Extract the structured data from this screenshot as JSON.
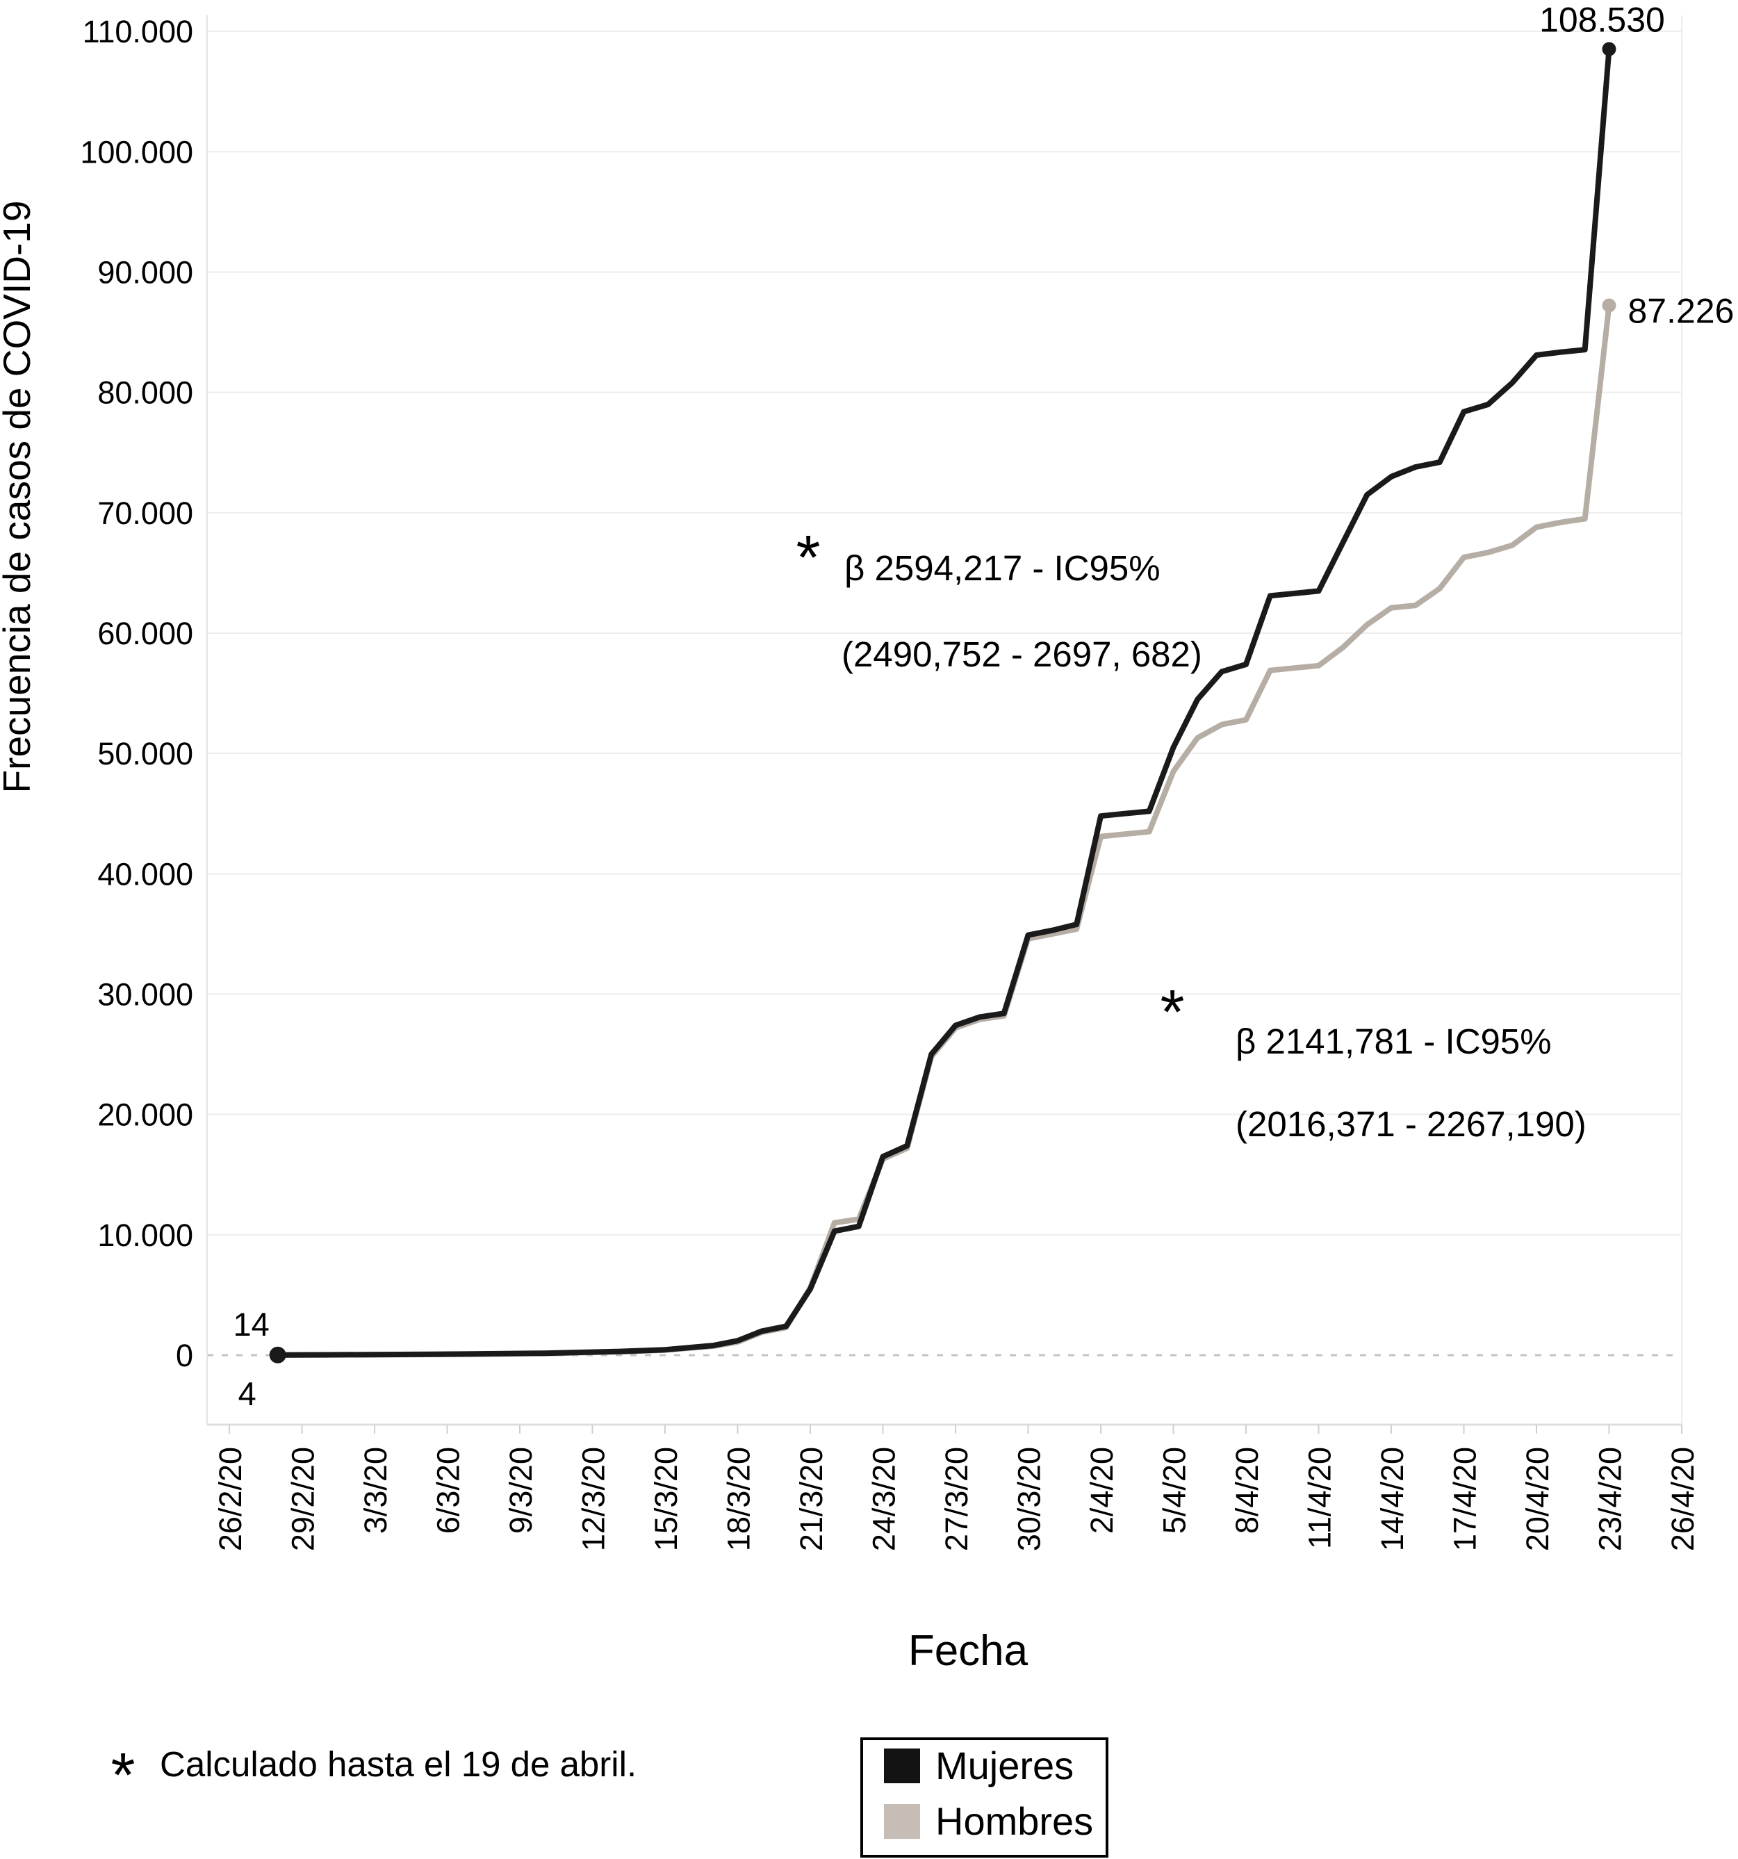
{
  "chart_data": {
    "type": "line",
    "title": "",
    "xlabel": "Fecha",
    "ylabel": "Frecuencia de casos de COVID-19",
    "x_tick_labels": [
      "26/2/20",
      "29/2/20",
      "3/3/20",
      "6/3/20",
      "9/3/20",
      "12/3/20",
      "15/3/20",
      "18/3/20",
      "21/3/20",
      "24/3/20",
      "27/3/20",
      "30/3/20",
      "2/4/20",
      "5/4/20",
      "8/4/20",
      "11/4/20",
      "14/4/20",
      "17/4/20",
      "20/4/20",
      "23/4/20",
      "26/4/20"
    ],
    "y_tick_labels": [
      "0",
      "10.000",
      "20.000",
      "30.000",
      "40.000",
      "50.000",
      "60.000",
      "70.000",
      "80.000",
      "90.000",
      "100.000",
      "110.000"
    ],
    "y_tick_values": [
      0,
      10000,
      20000,
      30000,
      40000,
      50000,
      60000,
      70000,
      80000,
      90000,
      100000,
      110000
    ],
    "ylim": [
      0,
      110000
    ],
    "grid": "horizontal",
    "zero_line_style": "dotted",
    "legend_position": "bottom",
    "series": [
      {
        "name": "Mujeres",
        "color": "#1a1a1a",
        "start_label": "14",
        "end_label": "108.530",
        "points": [
          [
            "28/2/20",
            14
          ],
          [
            "1/3/20",
            30
          ],
          [
            "4/3/20",
            60
          ],
          [
            "7/3/20",
            100
          ],
          [
            "10/3/20",
            160
          ],
          [
            "13/3/20",
            300
          ],
          [
            "15/3/20",
            450
          ],
          [
            "17/3/20",
            800
          ],
          [
            "18/3/20",
            1200
          ],
          [
            "19/3/20",
            2000
          ],
          [
            "20/3/20",
            2400
          ],
          [
            "21/3/20",
            5500
          ],
          [
            "22/3/20",
            10300
          ],
          [
            "23/3/20",
            10700
          ],
          [
            "24/3/20",
            16500
          ],
          [
            "25/3/20",
            17400
          ],
          [
            "26/3/20",
            25000
          ],
          [
            "27/3/20",
            27400
          ],
          [
            "28/3/20",
            28100
          ],
          [
            "29/3/20",
            28400
          ],
          [
            "30/3/20",
            34900
          ],
          [
            "31/3/20",
            35300
          ],
          [
            "1/4/20",
            35800
          ],
          [
            "2/4/20",
            44800
          ],
          [
            "3/4/20",
            45000
          ],
          [
            "4/4/20",
            45200
          ],
          [
            "5/4/20",
            50500
          ],
          [
            "6/4/20",
            54500
          ],
          [
            "7/4/20",
            56800
          ],
          [
            "8/4/20",
            57400
          ],
          [
            "9/4/20",
            63100
          ],
          [
            "10/4/20",
            63300
          ],
          [
            "11/4/20",
            63500
          ],
          [
            "12/4/20",
            67500
          ],
          [
            "13/4/20",
            71500
          ],
          [
            "14/4/20",
            73000
          ],
          [
            "15/4/20",
            73800
          ],
          [
            "16/4/20",
            74200
          ],
          [
            "17/4/20",
            78400
          ],
          [
            "18/4/20",
            79000
          ],
          [
            "19/4/20",
            80800
          ],
          [
            "20/4/20",
            83100
          ],
          [
            "21/4/20",
            83350
          ],
          [
            "22/4/20",
            83550
          ],
          [
            "23/4/20",
            108530
          ]
        ]
      },
      {
        "name": "Hombres",
        "color": "#b6ada5",
        "start_label": "4",
        "end_label": "87.226",
        "points": [
          [
            "28/2/20",
            4
          ],
          [
            "1/3/20",
            20
          ],
          [
            "4/3/20",
            45
          ],
          [
            "7/3/20",
            80
          ],
          [
            "10/3/20",
            140
          ],
          [
            "13/3/20",
            270
          ],
          [
            "15/3/20",
            420
          ],
          [
            "17/3/20",
            750
          ],
          [
            "18/3/20",
            1100
          ],
          [
            "19/3/20",
            1900
          ],
          [
            "20/3/20",
            2300
          ],
          [
            "21/3/20",
            5600
          ],
          [
            "22/3/20",
            11000
          ],
          [
            "23/3/20",
            11300
          ],
          [
            "24/3/20",
            16300
          ],
          [
            "25/3/20",
            17200
          ],
          [
            "26/3/20",
            24800
          ],
          [
            "27/3/20",
            27200
          ],
          [
            "28/3/20",
            27900
          ],
          [
            "29/3/20",
            28200
          ],
          [
            "30/3/20",
            34600
          ],
          [
            "31/3/20",
            35000
          ],
          [
            "1/4/20",
            35400
          ],
          [
            "2/4/20",
            43100
          ],
          [
            "3/4/20",
            43300
          ],
          [
            "4/4/20",
            43500
          ],
          [
            "5/4/20",
            48500
          ],
          [
            "6/4/20",
            51300
          ],
          [
            "7/4/20",
            52400
          ],
          [
            "8/4/20",
            52800
          ],
          [
            "9/4/20",
            56900
          ],
          [
            "10/4/20",
            57100
          ],
          [
            "11/4/20",
            57300
          ],
          [
            "12/4/20",
            58800
          ],
          [
            "13/4/20",
            60700
          ],
          [
            "14/4/20",
            62100
          ],
          [
            "15/4/20",
            62300
          ],
          [
            "16/4/20",
            63700
          ],
          [
            "17/4/20",
            66300
          ],
          [
            "18/4/20",
            66700
          ],
          [
            "19/4/20",
            67300
          ],
          [
            "20/4/20",
            68800
          ],
          [
            "21/4/20",
            69200
          ],
          [
            "22/4/20",
            69500
          ],
          [
            "23/4/20",
            87226
          ]
        ]
      }
    ],
    "annotations": [
      {
        "marker": "*",
        "line1": "β 2594,217 - IC95%",
        "line2": "(2490,752 - 2697, 682)"
      },
      {
        "marker": "*",
        "line1": "β 2141,781 - IC95%",
        "line2": "(2016,371 - 2267,190)"
      }
    ]
  },
  "footnote": {
    "marker": "*",
    "text": "Calculado hasta el 19 de abril."
  },
  "legend": {
    "items": [
      {
        "label": "Mujeres",
        "color": "#131313"
      },
      {
        "label": "Hombres",
        "color": "#c6beb6"
      }
    ]
  }
}
